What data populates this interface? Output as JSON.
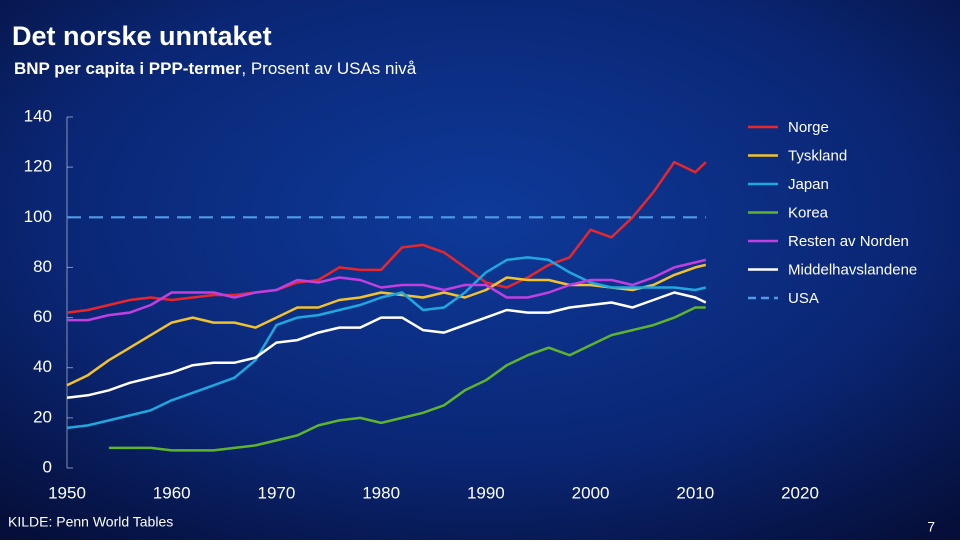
{
  "chart_data": {
    "type": "line",
    "title": "Det norske unntaket",
    "subtitle_bold": "BNP per capita i PPP-termer",
    "subtitle": ", Prosent av USAs nivå",
    "source": "KILDE: Penn World Tables",
    "page_number": "7",
    "x": [
      1950,
      1952,
      1954,
      1956,
      1958,
      1960,
      1962,
      1964,
      1966,
      1968,
      1970,
      1972,
      1974,
      1976,
      1978,
      1980,
      1982,
      1984,
      1986,
      1988,
      1990,
      1992,
      1994,
      1996,
      1998,
      2000,
      2002,
      2004,
      2006,
      2008,
      2010,
      2011
    ],
    "xlim": [
      1950,
      2020
    ],
    "xticks": [
      1950,
      1960,
      1970,
      1980,
      1990,
      2000,
      2010,
      2020
    ],
    "ylim": [
      0,
      140
    ],
    "yticks": [
      0,
      20,
      40,
      60,
      80,
      100,
      120,
      140
    ],
    "grid": false,
    "legend": "top-right",
    "series": [
      {
        "name": "Norge",
        "color": "#e8262b",
        "dashed": false,
        "values": [
          62,
          63,
          65,
          67,
          68,
          67,
          68,
          69,
          69,
          70,
          71,
          74,
          75,
          80,
          79,
          79,
          88,
          89,
          86,
          80,
          74,
          72,
          76,
          81,
          84,
          95,
          92,
          100,
          110,
          122,
          118,
          122
        ]
      },
      {
        "name": "Tyskland",
        "color": "#f2c12e",
        "dashed": false,
        "values": [
          33,
          37,
          43,
          48,
          53,
          58,
          60,
          58,
          58,
          56,
          60,
          64,
          64,
          67,
          68,
          70,
          69,
          68,
          70,
          68,
          71,
          76,
          75,
          75,
          73,
          73,
          72,
          71,
          73,
          77,
          80,
          81
        ]
      },
      {
        "name": "Japan",
        "color": "#1fa8e0",
        "dashed": false,
        "values": [
          16,
          17,
          19,
          21,
          23,
          27,
          30,
          33,
          36,
          43,
          57,
          60,
          61,
          63,
          65,
          68,
          70,
          63,
          64,
          70,
          78,
          83,
          84,
          83,
          78,
          74,
          72,
          72,
          72,
          72,
          71,
          72
        ]
      },
      {
        "name": "Korea",
        "color": "#5fb42d",
        "dashed": false,
        "values": [
          null,
          null,
          8,
          8,
          8,
          7,
          7,
          7,
          8,
          9,
          11,
          13,
          17,
          19,
          20,
          18,
          20,
          22,
          25,
          31,
          35,
          41,
          45,
          48,
          45,
          49,
          53,
          55,
          57,
          60,
          64,
          64
        ]
      },
      {
        "name": "Resten av Norden",
        "color": "#c13fe0",
        "dashed": false,
        "values": [
          59,
          59,
          61,
          62,
          65,
          70,
          70,
          70,
          68,
          70,
          71,
          75,
          74,
          76,
          75,
          72,
          73,
          73,
          71,
          73,
          73,
          68,
          68,
          70,
          73,
          75,
          75,
          73,
          76,
          80,
          82,
          83
        ]
      },
      {
        "name": "Middelhavslandene",
        "color": "#ffffff",
        "dashed": false,
        "values": [
          28,
          29,
          31,
          34,
          36,
          38,
          41,
          42,
          42,
          44,
          50,
          51,
          54,
          56,
          56,
          60,
          60,
          55,
          54,
          57,
          60,
          63,
          62,
          62,
          64,
          65,
          66,
          64,
          67,
          70,
          68,
          66
        ]
      },
      {
        "name": "USA",
        "color": "#4f9be8",
        "dashed": true,
        "values": [
          100,
          100,
          100,
          100,
          100,
          100,
          100,
          100,
          100,
          100,
          100,
          100,
          100,
          100,
          100,
          100,
          100,
          100,
          100,
          100,
          100,
          100,
          100,
          100,
          100,
          100,
          100,
          100,
          100,
          100,
          100,
          100
        ]
      }
    ]
  }
}
